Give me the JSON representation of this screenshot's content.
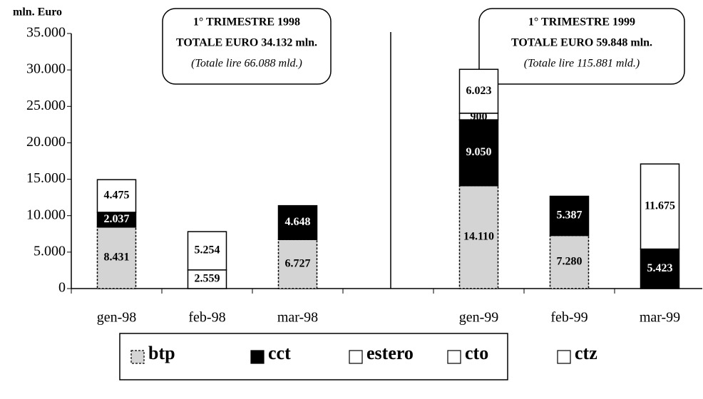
{
  "chart_data": {
    "type": "stacked-bar",
    "y_label": "mln. Euro",
    "annotations": [
      [
        "1° TRIMESTRE 1998",
        "TOTALE EURO 34.132 mln.",
        "(Totale lire 66.088 mld.)"
      ],
      [
        "1° TRIMESTRE 1999",
        "TOTALE EURO 59.848 mln.",
        "(Totale lire 115.881 mld.)"
      ]
    ],
    "categories": [
      "gen-98",
      "feb-98",
      "mar-98",
      null,
      "gen-99",
      "feb-99",
      "mar-99"
    ],
    "series": [
      {
        "name": "btp",
        "color": "#d4d4d4",
        "values": [
          8431,
          0,
          6727,
          null,
          14110,
          7280,
          0
        ],
        "value_labels": [
          "8.431",
          null,
          "6.727",
          null,
          "14.110",
          "7.280",
          null
        ]
      },
      {
        "name": "cct",
        "color": "#000000",
        "values": [
          2037,
          0,
          4648,
          null,
          9050,
          5387,
          5423
        ],
        "value_labels": [
          "2.037",
          null,
          "4.648",
          null,
          "9.050",
          "5.387",
          "5.423"
        ]
      },
      {
        "name": "estero",
        "color": "#ffffff",
        "values": [
          0,
          0,
          0,
          null,
          0,
          0,
          0
        ],
        "value_labels": [
          null,
          null,
          null,
          null,
          null,
          null,
          null
        ]
      },
      {
        "name": "cto",
        "color": "#ffffff",
        "values": [
          0,
          2559,
          0,
          null,
          900,
          0,
          0
        ],
        "value_labels": [
          null,
          "2.559",
          null,
          null,
          "900",
          null,
          null
        ]
      },
      {
        "name": "ctz",
        "color": "#ffffff",
        "values": [
          4475,
          5254,
          0,
          null,
          6023,
          0,
          11675
        ],
        "value_labels": [
          "4.475",
          "5.254",
          null,
          null,
          "6.023",
          null,
          "11.675"
        ]
      }
    ],
    "ylim": [
      0,
      35000
    ],
    "yticks": [
      0,
      {
        "value": 5000,
        "label": "5.000"
      },
      {
        "value": 10000,
        "label": "10.000"
      },
      {
        "value": 15000,
        "label": "15.000"
      },
      {
        "value": 20000,
        "label": "20.000"
      },
      {
        "value": 25000,
        "label": "25.000"
      },
      {
        "value": 30000,
        "label": "30.000"
      },
      {
        "value": 35000,
        "label": "35.000"
      }
    ]
  }
}
